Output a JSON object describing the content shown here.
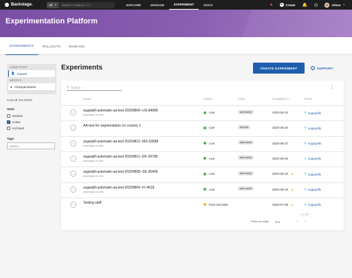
{
  "topbar": {
    "logo_text": "Backstage.",
    "search_scope": "All",
    "search_placeholder": "Search / Explore ( / )",
    "nav": [
      "EXPLORE",
      "MANAGE",
      "EXPERIMENT",
      "DOCS"
    ],
    "active_nav": "EXPERIMENT",
    "create_label": "Create",
    "user_name": "Johan",
    "icons": [
      "warning-icon",
      "plus-icon",
      "bell-icon",
      "clock-icon",
      "avatar"
    ]
  },
  "header": {
    "title": "Experimentation Platform"
  },
  "tabs": [
    "EXPERIMENTS",
    "ROLLOUTS",
    "DOMAINS"
  ],
  "sidebar": {
    "your_stuff": "YOUR STUFF",
    "owned": "Owned",
    "org": "SPOTIFY",
    "all_experiments": "All Experiments",
    "clear_filters": "CLEAR FILTERS",
    "state_label": "State",
    "states": [
      {
        "label": "Inactive",
        "checked": false
      },
      {
        "label": "Active",
        "checked": true
      },
      {
        "label": "Archived",
        "checked": false
      }
    ],
    "tags_label": "Tags",
    "tags_placeholder": "Select..."
  },
  "main": {
    "title": "Experiments",
    "create_button": "CREATE EXPERIMENT",
    "support": "SUPPORT",
    "search_placeholder": "Search",
    "columns": [
      "NAME",
      "STATE",
      "TASK",
      "PLANNED E...",
      "TEAM"
    ],
    "rows": [
      {
        "name": "sugarpill-automatic-aa-test-20200809--US-84686",
        "sub": "automagic a a test",
        "state": "Live",
        "state_color": "#4caf50",
        "task": "aae-script",
        "date": "2020-08-24",
        "warn": false,
        "team": "sugarpills"
      },
      {
        "name": "AA-test for segmentation on country 1",
        "sub": "-",
        "state": "Live",
        "state_color": "#4caf50",
        "task": "aa-test",
        "date": "2020-08-20",
        "warn": false,
        "team": "sugarpills"
      },
      {
        "name": "sugarpill-automatic-aa-test-20200812--MX-63688",
        "sub": "automagic a a test",
        "state": "Live",
        "state_color": "#4caf50",
        "task": "aae-script",
        "date": "2020-08-27",
        "warn": false,
        "team": "sugarpills"
      },
      {
        "name": "sugarpill-automatic-aa-test-20200811--DK-39798",
        "sub": "automagic a a test",
        "state": "Live",
        "state_color": "#4caf50",
        "task": "aae-script",
        "date": "2020-08-26",
        "warn": false,
        "team": "sugarpills"
      },
      {
        "name": "sugarpill-automatic-aa-test-20200808--SE-36406",
        "sub": "automagic a a test",
        "state": "Live",
        "state_color": "#4caf50",
        "task": "aae-script",
        "date": "2020-08-23",
        "warn": true,
        "team": "sugarpills"
      },
      {
        "name": "sugarpill-automatic-aa-test-20200804--FI-4618",
        "sub": "automagic a a test",
        "state": "Live",
        "state_color": "#4caf50",
        "task": "aae-script",
        "date": "2020-08-19",
        "warn": true,
        "team": "sugarpills"
      },
      {
        "name": "Testing stuff",
        "sub": "-",
        "state": "Past end date",
        "state_color": "#f0b429",
        "task": "",
        "date": "2020-07-08",
        "warn": true,
        "team": "sugarpills"
      }
    ],
    "pagination": {
      "count": "1-7 of 7",
      "rows_per_page_label": "Rows per page:",
      "rows_per_page": "25"
    }
  }
}
